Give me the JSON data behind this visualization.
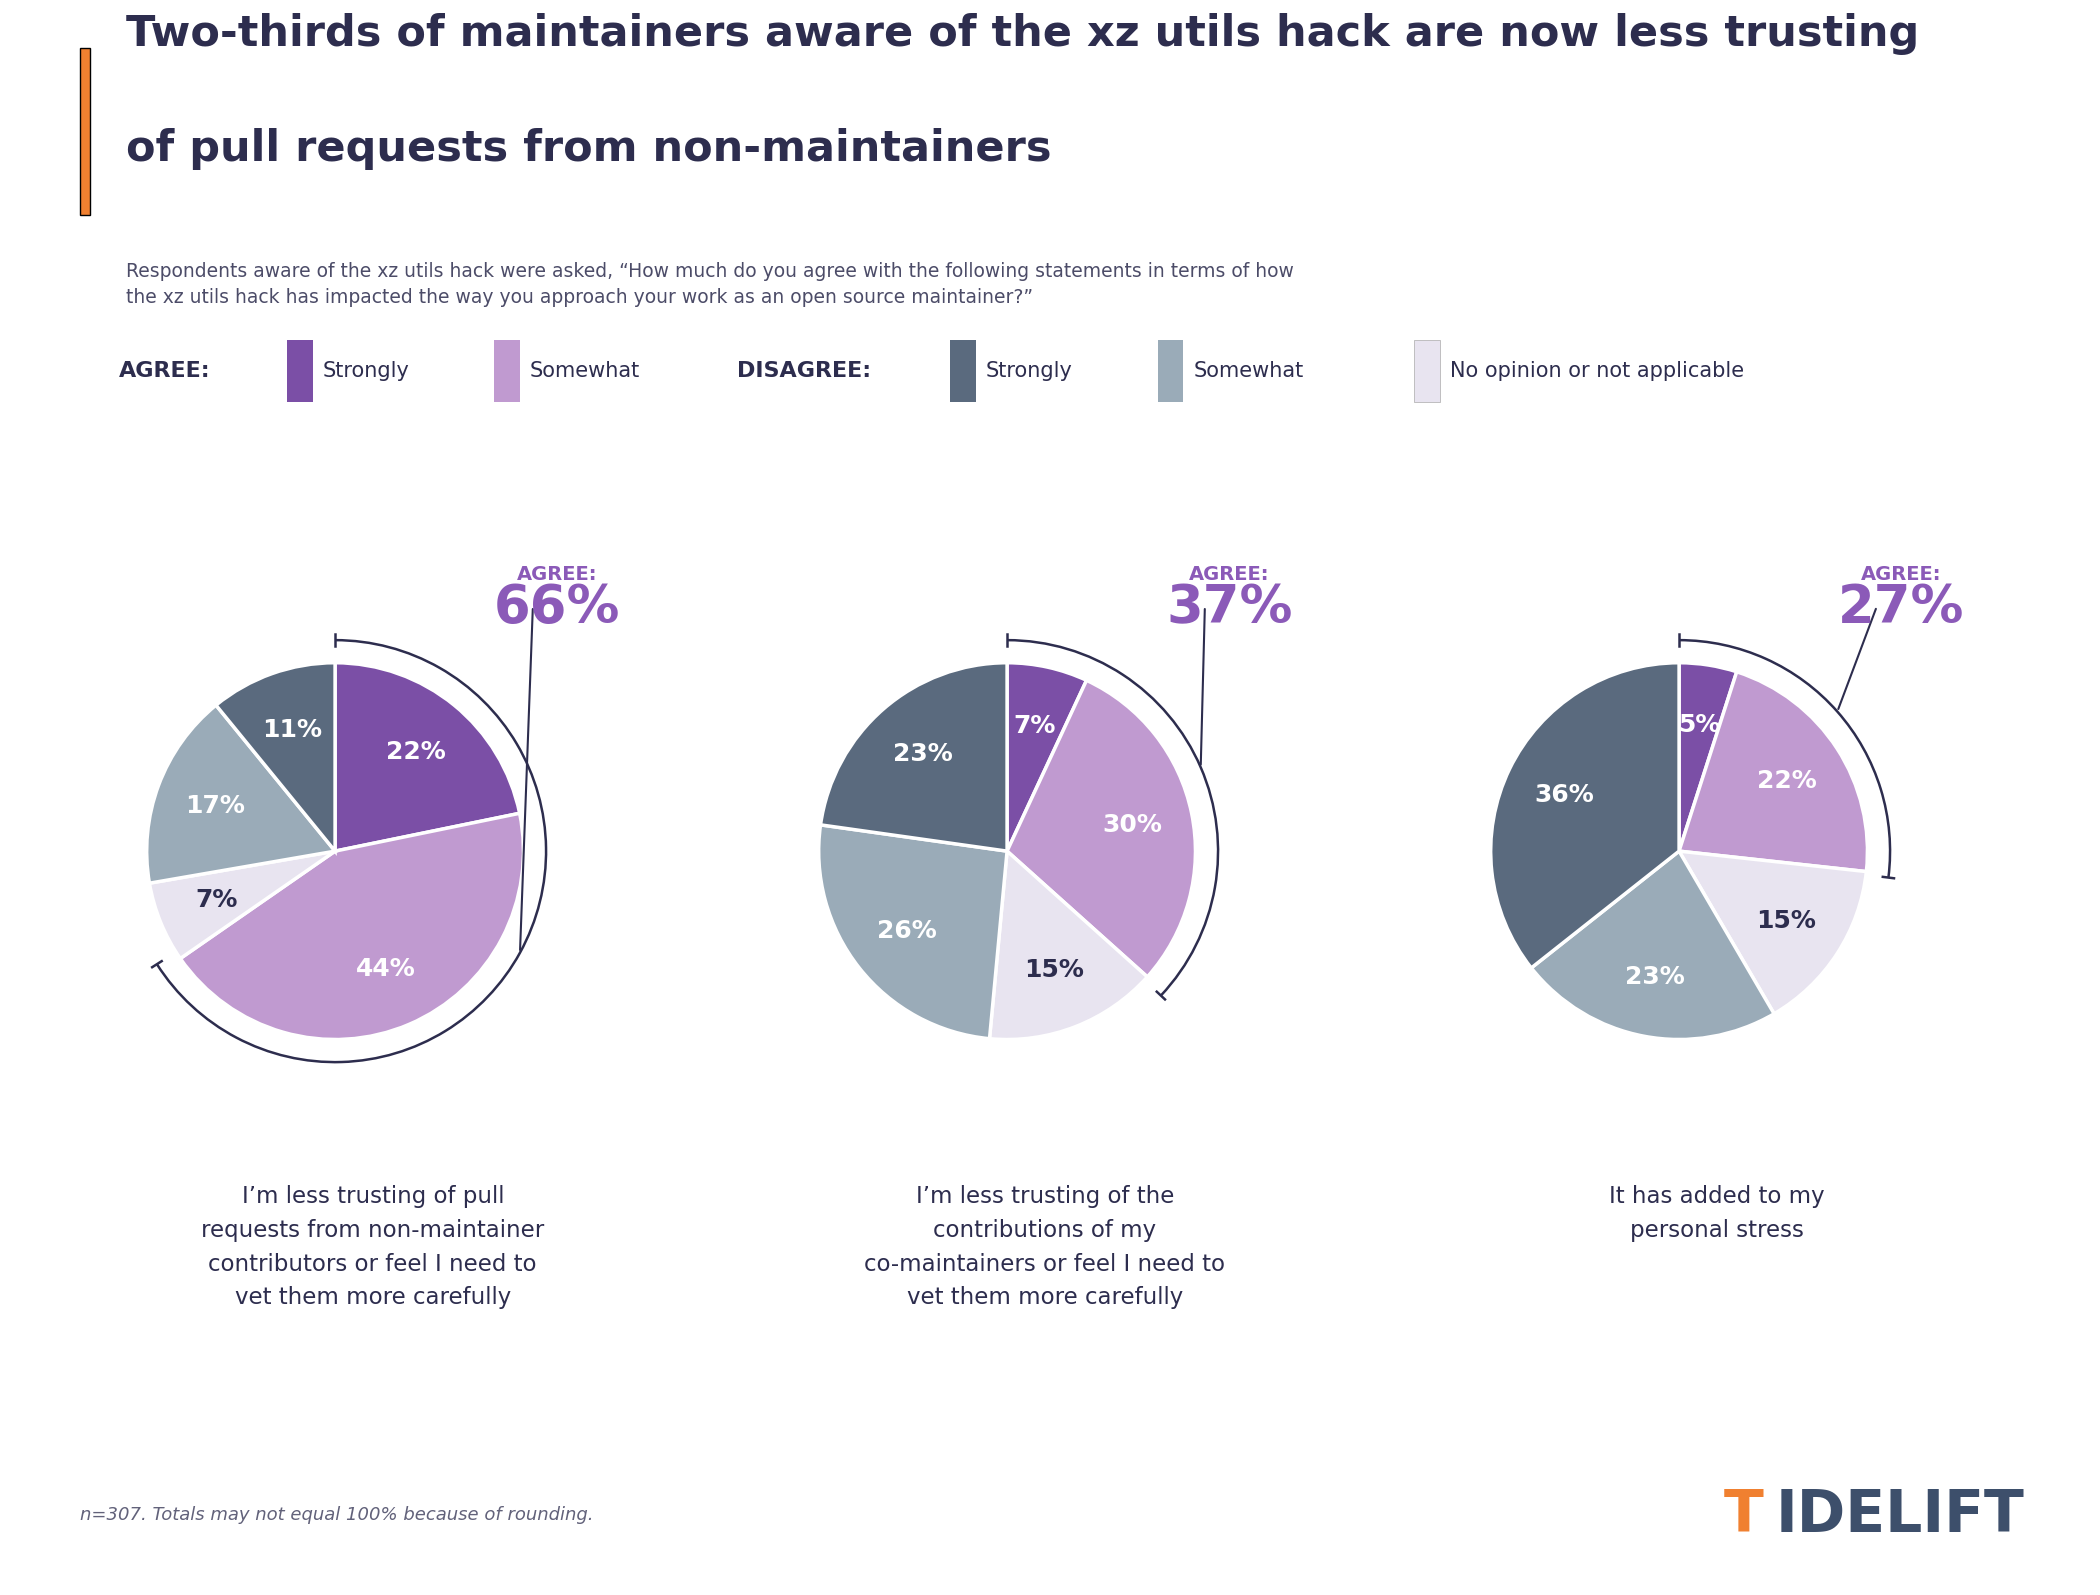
{
  "title_line1": "Two-thirds of maintainers aware of the xz utils hack are now less trusting",
  "title_line2": "of pull requests from non-maintainers",
  "subtitle": "Respondents aware of the xz utils hack were asked, “How much do you agree with the following statements in terms of how\nthe xz utils hack has impacted the way you approach your work as an open source maintainer?”",
  "footnote": "n=307. Totals may not equal 100% because of rounding.",
  "bg_color": "#ffffff",
  "title_color": "#2d2d4e",
  "orange_bar_color": "#f08030",
  "pies": [
    {
      "values": [
        22,
        44,
        7,
        17,
        11
      ],
      "colors": [
        "#7b4fa6",
        "#c09ad0",
        "#e8e4f0",
        "#9aabb8",
        "#5a6a7e"
      ],
      "labels": [
        "22%",
        "44%",
        "7%",
        "17%",
        "11%"
      ],
      "label_colors": [
        "white",
        "white",
        "#2d2d4e",
        "white",
        "white"
      ],
      "agree_pct": "66%",
      "description": "I’m less trusting of pull\nrequests from non-maintainer\ncontributors or feel I need to\nvet them more carefully"
    },
    {
      "values": [
        7,
        30,
        15,
        26,
        23
      ],
      "colors": [
        "#7b4fa6",
        "#c09ad0",
        "#e8e4f0",
        "#9aabb8",
        "#5a6a7e"
      ],
      "labels": [
        "7%",
        "30%",
        "15%",
        "26%",
        "23%"
      ],
      "label_colors": [
        "white",
        "white",
        "#2d2d4e",
        "white",
        "white"
      ],
      "agree_pct": "37%",
      "description": "I’m less trusting of the\ncontributions of my\nco-maintainers or feel I need to\nvet them more carefully"
    },
    {
      "values": [
        5,
        22,
        15,
        23,
        36
      ],
      "colors": [
        "#7b4fa6",
        "#c09ad0",
        "#e8e4f0",
        "#9aabb8",
        "#5a6a7e"
      ],
      "labels": [
        "5%",
        "22%",
        "15%",
        "23%",
        "36%"
      ],
      "label_colors": [
        "white",
        "white",
        "#2d2d4e",
        "white",
        "white"
      ],
      "agree_pct": "27%",
      "description": "It has added to my\npersonal stress"
    }
  ],
  "agree_color": "#8b5ab8",
  "legend_agree_strong_color": "#7b4fa6",
  "legend_agree_somewhat_color": "#c09ad0",
  "legend_disagree_strong_color": "#5a6a7e",
  "legend_disagree_somewhat_color": "#9aabb8",
  "legend_no_opinion_color": "#e8e4f0",
  "tidelift_color": "#3d4f6b",
  "tidelift_t_color": "#f08030"
}
